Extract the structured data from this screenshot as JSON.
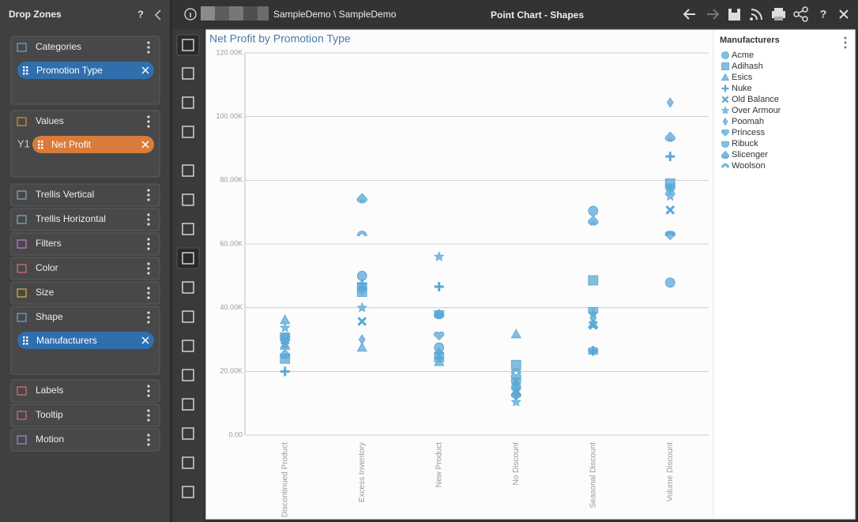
{
  "drop_zones": {
    "title": "Drop Zones",
    "help": "?",
    "zones": [
      {
        "label": "Categories",
        "chip": "Promotion Type"
      },
      {
        "label": "Values",
        "axis": "Y1",
        "chip": "Net Profit"
      },
      {
        "label": "Trellis Vertical"
      },
      {
        "label": "Trellis Horizontal"
      },
      {
        "label": "Filters"
      },
      {
        "label": "Color"
      },
      {
        "label": "Size"
      },
      {
        "label": "Shape",
        "chip": "Manufacturers"
      },
      {
        "label": "Labels"
      },
      {
        "label": "Tooltip"
      },
      {
        "label": "Motion"
      }
    ]
  },
  "toolbar": {
    "breadcrumb": "SampleDemo \\ SampleDemo",
    "title": "Point Chart - Shapes",
    "help": "?"
  },
  "chart_data": {
    "type": "scatter",
    "title": "Net Profit by Promotion Type",
    "categories": [
      "Discontinued Product",
      "Excess Inventory",
      "New Product",
      "No Discount",
      "Seasonal Discount",
      "Volume Discount"
    ],
    "ylim": [
      0,
      120000
    ],
    "yticks": [
      {
        "value": 0,
        "label": "0.00"
      },
      {
        "value": 20000,
        "label": "20.00K"
      },
      {
        "value": 40000,
        "label": "40.00K"
      },
      {
        "value": 60000,
        "label": "60.00K"
      },
      {
        "value": 80000,
        "label": "80.00K"
      },
      {
        "value": 100000,
        "label": "100.00K"
      },
      {
        "value": 120000,
        "label": "120.00K"
      }
    ],
    "grid": true,
    "legend_title": "Manufacturers",
    "legend": "right",
    "series": [
      {
        "name": "Acme",
        "color": "#5ba8d6",
        "marker": "circle",
        "values": [
          30700,
          50000,
          27500,
          15000,
          70400,
          47900
        ]
      },
      {
        "name": "Adihash",
        "color": "#5ba8d6",
        "marker": "square",
        "values": [
          24000,
          45000,
          24500,
          22000,
          48600,
          79000
        ]
      },
      {
        "name": "Esics",
        "color": "#5ba8d6",
        "marker": "triangle",
        "values": [
          36200,
          27500,
          23000,
          31700,
          35000,
          77000
        ]
      },
      {
        "name": "Nuke",
        "color": "#5ba8d6",
        "marker": "plus",
        "values": [
          20000,
          47500,
          46600,
          12600,
          26500,
          87500
        ]
      },
      {
        "name": "Old Balance",
        "color": "#5ba8d6",
        "marker": "cross",
        "values": [
          29800,
          35700,
          25000,
          14000,
          34500,
          70700
        ]
      },
      {
        "name": "Over Armour",
        "color": "#5ba8d6",
        "marker": "star",
        "values": [
          33700,
          40000,
          56000,
          10400,
          38000,
          75000
        ]
      },
      {
        "name": "Poomah",
        "color": "#5ba8d6",
        "marker": "diamond",
        "values": [
          28000,
          30000,
          26000,
          16400,
          36700,
          104400
        ]
      },
      {
        "name": "Princess",
        "color": "#5ba8d6",
        "marker": "heart",
        "values": [
          29500,
          45500,
          31200,
          18000,
          26300,
          62700
        ]
      },
      {
        "name": "Ribuck",
        "color": "#5ba8d6",
        "marker": "shield",
        "values": [
          31200,
          47000,
          38200,
          17000,
          39200,
          78000
        ]
      },
      {
        "name": "Slicenger",
        "color": "#5ba8d6",
        "marker": "spade",
        "values": [
          25500,
          74400,
          38000,
          13000,
          67400,
          93700
        ]
      },
      {
        "name": "Woolson",
        "color": "#5ba8d6",
        "marker": "arch",
        "values": [
          27500,
          63200,
          37800,
          20000,
          26000,
          63200
        ]
      }
    ]
  }
}
